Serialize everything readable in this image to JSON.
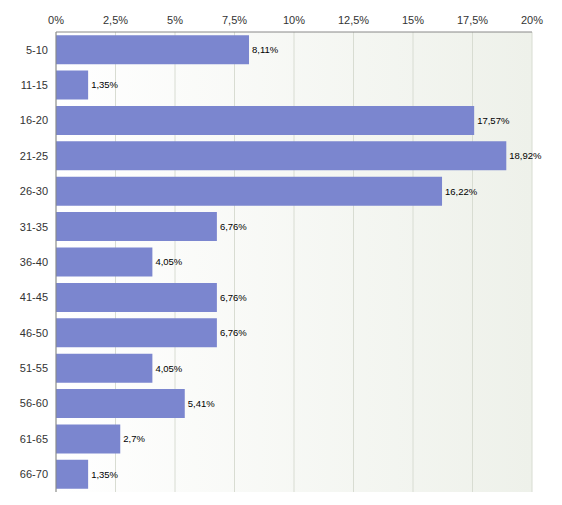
{
  "chart_data": {
    "type": "bar",
    "orientation": "horizontal",
    "categories": [
      "5-10",
      "11-15",
      "16-20",
      "21-25",
      "26-30",
      "31-35",
      "36-40",
      "41-45",
      "46-50",
      "51-55",
      "56-60",
      "61-65",
      "66-70"
    ],
    "values": [
      8.11,
      1.35,
      17.57,
      18.92,
      16.22,
      6.76,
      4.05,
      6.76,
      6.76,
      4.05,
      5.41,
      2.7,
      1.35
    ],
    "value_labels": [
      "8,11%",
      "1,35%",
      "17,57%",
      "18,92%",
      "16,22%",
      "6,76%",
      "4,05%",
      "6,76%",
      "6,76%",
      "4,05%",
      "5,41%",
      "2,7%",
      "1,35%"
    ],
    "color": "#7b86cf",
    "xlim": [
      0,
      20
    ],
    "xticks": [
      {
        "value": 0,
        "label": "0%"
      },
      {
        "value": 2.5,
        "label": "2,5%"
      },
      {
        "value": 5,
        "label": "5%"
      },
      {
        "value": 7.5,
        "label": "7,5%"
      },
      {
        "value": 10,
        "label": "10%"
      },
      {
        "value": 12.5,
        "label": "12,5%"
      },
      {
        "value": 15,
        "label": "15%"
      },
      {
        "value": 17.5,
        "label": "17,5%"
      },
      {
        "value": 20,
        "label": "20%"
      }
    ],
    "grid": true,
    "data_labels": true
  }
}
